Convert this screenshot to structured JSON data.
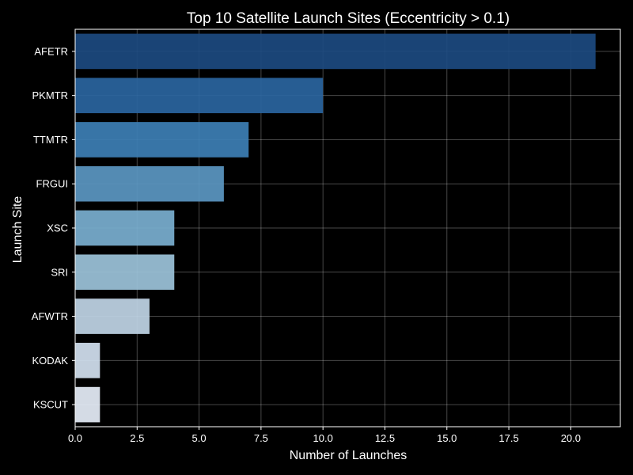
{
  "chart_data": {
    "type": "bar",
    "orientation": "horizontal",
    "title": "Top 10 Satellite Launch Sites (Eccentricity > 0.1)",
    "xlabel": "Number of Launches",
    "ylabel": "Launch Site",
    "categories": [
      "AFETR",
      "PKMTR",
      "TTMTR",
      "FRGUI",
      "XSC",
      "SRI",
      "AFWTR",
      "KODAK",
      "KSCUT"
    ],
    "values": [
      21,
      10,
      7,
      6,
      4,
      4,
      3,
      1,
      1
    ],
    "colors": [
      "#1c4a80",
      "#2a65a0",
      "#3d7fb5",
      "#5b97c2",
      "#7aafd0",
      "#9cc3da",
      "#c0d5e6",
      "#d3e1f0",
      "#e6eef8"
    ],
    "xlim": [
      0,
      22
    ],
    "xticks": [
      "0.0",
      "2.5",
      "5.0",
      "7.5",
      "10.0",
      "12.5",
      "15.0",
      "17.5",
      "20.0"
    ],
    "grid": true,
    "background": "#000000",
    "text_color": "#ffffff"
  }
}
